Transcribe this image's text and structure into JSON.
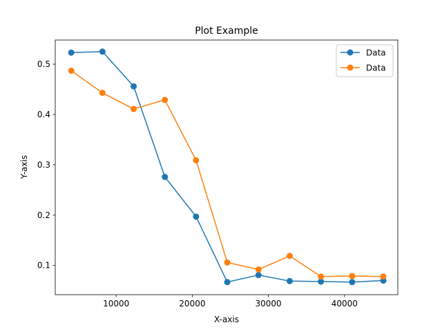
{
  "chart_data": {
    "type": "line",
    "title": "Plot Example",
    "xlabel": "X-axis",
    "ylabel": "Y-axis",
    "xlim": [
      2000,
      47000
    ],
    "ylim": [
      0.042,
      0.548
    ],
    "xticks": [
      10000,
      20000,
      30000,
      40000
    ],
    "yticks": [
      0.1,
      0.2,
      0.3,
      0.4,
      0.5
    ],
    "grid": false,
    "legend_position": "top-right",
    "series": [
      {
        "name": "Data",
        "color": "#1f77b4",
        "x": [
          4100,
          8200,
          12300,
          16400,
          20500,
          24600,
          28700,
          32800,
          36900,
          41000,
          45100
        ],
        "y": [
          0.523,
          0.525,
          0.456,
          0.276,
          0.197,
          0.067,
          0.081,
          0.069,
          0.068,
          0.067,
          0.07
        ]
      },
      {
        "name": "Data",
        "color": "#ff7f0e",
        "x": [
          4100,
          8200,
          12300,
          16400,
          20500,
          24600,
          28700,
          32800,
          36900,
          41000,
          45100
        ],
        "y": [
          0.487,
          0.443,
          0.411,
          0.429,
          0.309,
          0.106,
          0.092,
          0.119,
          0.078,
          0.079,
          0.078
        ]
      }
    ]
  }
}
